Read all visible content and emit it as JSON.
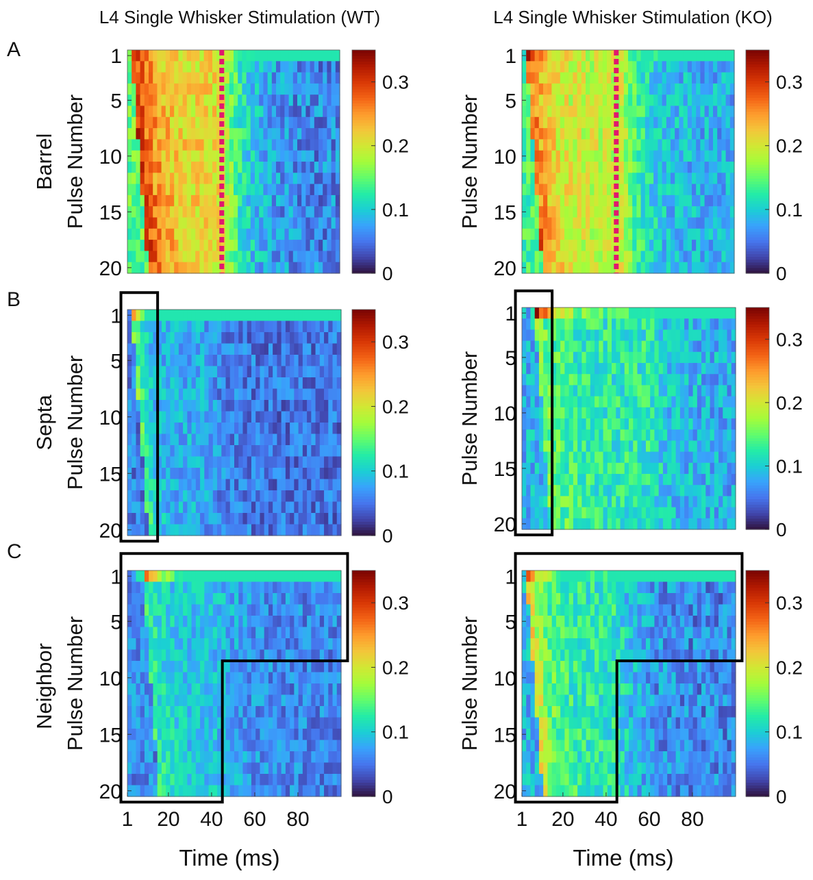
{
  "figure": {
    "column_titles": [
      "L4 Single Whisker Stimulation (WT)",
      "L4 Single Whisker Stimulation (KO)"
    ],
    "panel_labels": [
      "A",
      "B",
      "C"
    ],
    "row_labels": [
      "Barrel",
      "Septa",
      "Neighbor"
    ],
    "y_axis_label": "Pulse Number",
    "x_axis_label": "Time (ms)",
    "colormap": [
      "#30123b",
      "#4145ab",
      "#4675ed",
      "#39a2fc",
      "#1bcfd4",
      "#24eca6",
      "#61fc6c",
      "#a4fc3b",
      "#d1e834",
      "#f3c63a",
      "#fe9b2d",
      "#f36315",
      "#d93806",
      "#b11901",
      "#7a0403"
    ],
    "annotation_colors": {
      "dashed_line": "#e0186e",
      "outline_box": "#000000"
    }
  },
  "chart_data": [
    {
      "type": "heatmap",
      "panel": "A",
      "row": "Barrel",
      "genotype": "WT",
      "title": "L4 Single Whisker Stimulation (WT)",
      "xlabel": "Time (ms)",
      "ylabel": "Pulse Number",
      "xlim": [
        1,
        100
      ],
      "ylim": [
        1,
        20
      ],
      "yticks": [
        1,
        5,
        10,
        15,
        20
      ],
      "xticks": [],
      "colorbar_ticks": [
        0,
        0.1,
        0.2,
        0.3
      ],
      "clim": [
        0,
        0.35
      ],
      "model": {
        "peak1": 0.33,
        "peak_rest": 0.31,
        "onset_ms": 3,
        "decay_ms": 24,
        "sustained": 0.21,
        "late": 0.06,
        "late_ms": 45,
        "noise": 0.035
      },
      "annotations": {
        "dashed_line_ms": 45
      }
    },
    {
      "type": "heatmap",
      "panel": "A",
      "row": "Barrel",
      "genotype": "KO",
      "title": "L4 Single Whisker Stimulation (KO)",
      "xlabel": "Time (ms)",
      "ylabel": "Pulse Number",
      "xlim": [
        1,
        100
      ],
      "ylim": [
        1,
        20
      ],
      "yticks": [
        1,
        5,
        10,
        15,
        20
      ],
      "xticks": [],
      "colorbar_ticks": [
        0,
        0.1,
        0.2,
        0.3
      ],
      "clim": [
        0,
        0.35
      ],
      "model": {
        "peak1": 0.33,
        "peak_rest": 0.28,
        "onset_ms": 3,
        "decay_ms": 20,
        "sustained": 0.19,
        "late": 0.08,
        "late_ms": 48,
        "noise": 0.035
      },
      "annotations": {
        "dashed_line_ms": 45
      }
    },
    {
      "type": "heatmap",
      "panel": "B",
      "row": "Septa",
      "genotype": "WT",
      "xlabel": "Time (ms)",
      "ylabel": "Pulse Number",
      "xlim": [
        1,
        100
      ],
      "ylim": [
        1,
        20
      ],
      "yticks": [
        1,
        5,
        10,
        15,
        20
      ],
      "xticks": [],
      "colorbar_ticks": [
        0,
        0.1,
        0.2,
        0.3
      ],
      "clim": [
        0,
        0.35
      ],
      "model": {
        "peak1": 0.3,
        "peak_rest": 0.16,
        "onset_ms": 3,
        "decay_ms": 12,
        "sustained": 0.08,
        "late": 0.05,
        "late_ms": 35,
        "noise": 0.03
      },
      "annotations": {
        "box_ms": [
          -2,
          15
        ],
        "box_pulses": [
          -1,
          21
        ]
      }
    },
    {
      "type": "heatmap",
      "panel": "B",
      "row": "Septa",
      "genotype": "KO",
      "xlabel": "Time (ms)",
      "ylabel": "Pulse Number",
      "xlim": [
        1,
        100
      ],
      "ylim": [
        1,
        20
      ],
      "yticks": [
        1,
        5,
        10,
        15,
        20
      ],
      "xticks": [],
      "colorbar_ticks": [
        0,
        0.1,
        0.2,
        0.3
      ],
      "clim": [
        0,
        0.35
      ],
      "model": {
        "peak1": 0.34,
        "peak_rest": 0.16,
        "onset_ms": 7,
        "decay_ms": 30,
        "sustained": 0.12,
        "late": 0.08,
        "late_ms": 60,
        "noise": 0.035
      },
      "annotations": {
        "box_ms": [
          -2,
          15
        ],
        "box_pulses": [
          -1,
          21
        ]
      }
    },
    {
      "type": "heatmap",
      "panel": "C",
      "row": "Neighbor",
      "genotype": "WT",
      "xlabel": "Time (ms)",
      "ylabel": "Pulse Number",
      "xlim": [
        1,
        100
      ],
      "ylim": [
        1,
        20
      ],
      "yticks": [
        1,
        5,
        10,
        15,
        20
      ],
      "xticks": [
        1,
        20,
        40,
        60,
        80
      ],
      "colorbar_ticks": [
        0,
        0.1,
        0.2,
        0.3
      ],
      "clim": [
        0,
        0.35
      ],
      "model": {
        "peak1": 0.33,
        "peak_rest": 0.13,
        "onset_ms": 8,
        "decay_ms": 24,
        "sustained": 0.09,
        "late": 0.06,
        "late_ms": 45,
        "noise": 0.03
      },
      "annotations": {
        "outline_ms": [
          -2,
          45,
          103
        ],
        "outline_pulses": [
          -1,
          8.5,
          21
        ]
      }
    },
    {
      "type": "heatmap",
      "panel": "C",
      "row": "Neighbor",
      "genotype": "KO",
      "xlabel": "Time (ms)",
      "ylabel": "Pulse Number",
      "xlim": [
        1,
        100
      ],
      "ylim": [
        1,
        20
      ],
      "yticks": [
        1,
        5,
        10,
        15,
        20
      ],
      "xticks": [
        1,
        20,
        40,
        60,
        80
      ],
      "colorbar_ticks": [
        0,
        0.1,
        0.2,
        0.3
      ],
      "clim": [
        0,
        0.35
      ],
      "model": {
        "peak1": 0.33,
        "peak_rest": 0.22,
        "onset_ms": 3,
        "decay_ms": 18,
        "sustained": 0.12,
        "late": 0.06,
        "late_ms": 45,
        "noise": 0.035
      },
      "annotations": {
        "outline_ms": [
          -2,
          45,
          103
        ],
        "outline_pulses": [
          -1,
          8.5,
          21
        ]
      }
    }
  ]
}
